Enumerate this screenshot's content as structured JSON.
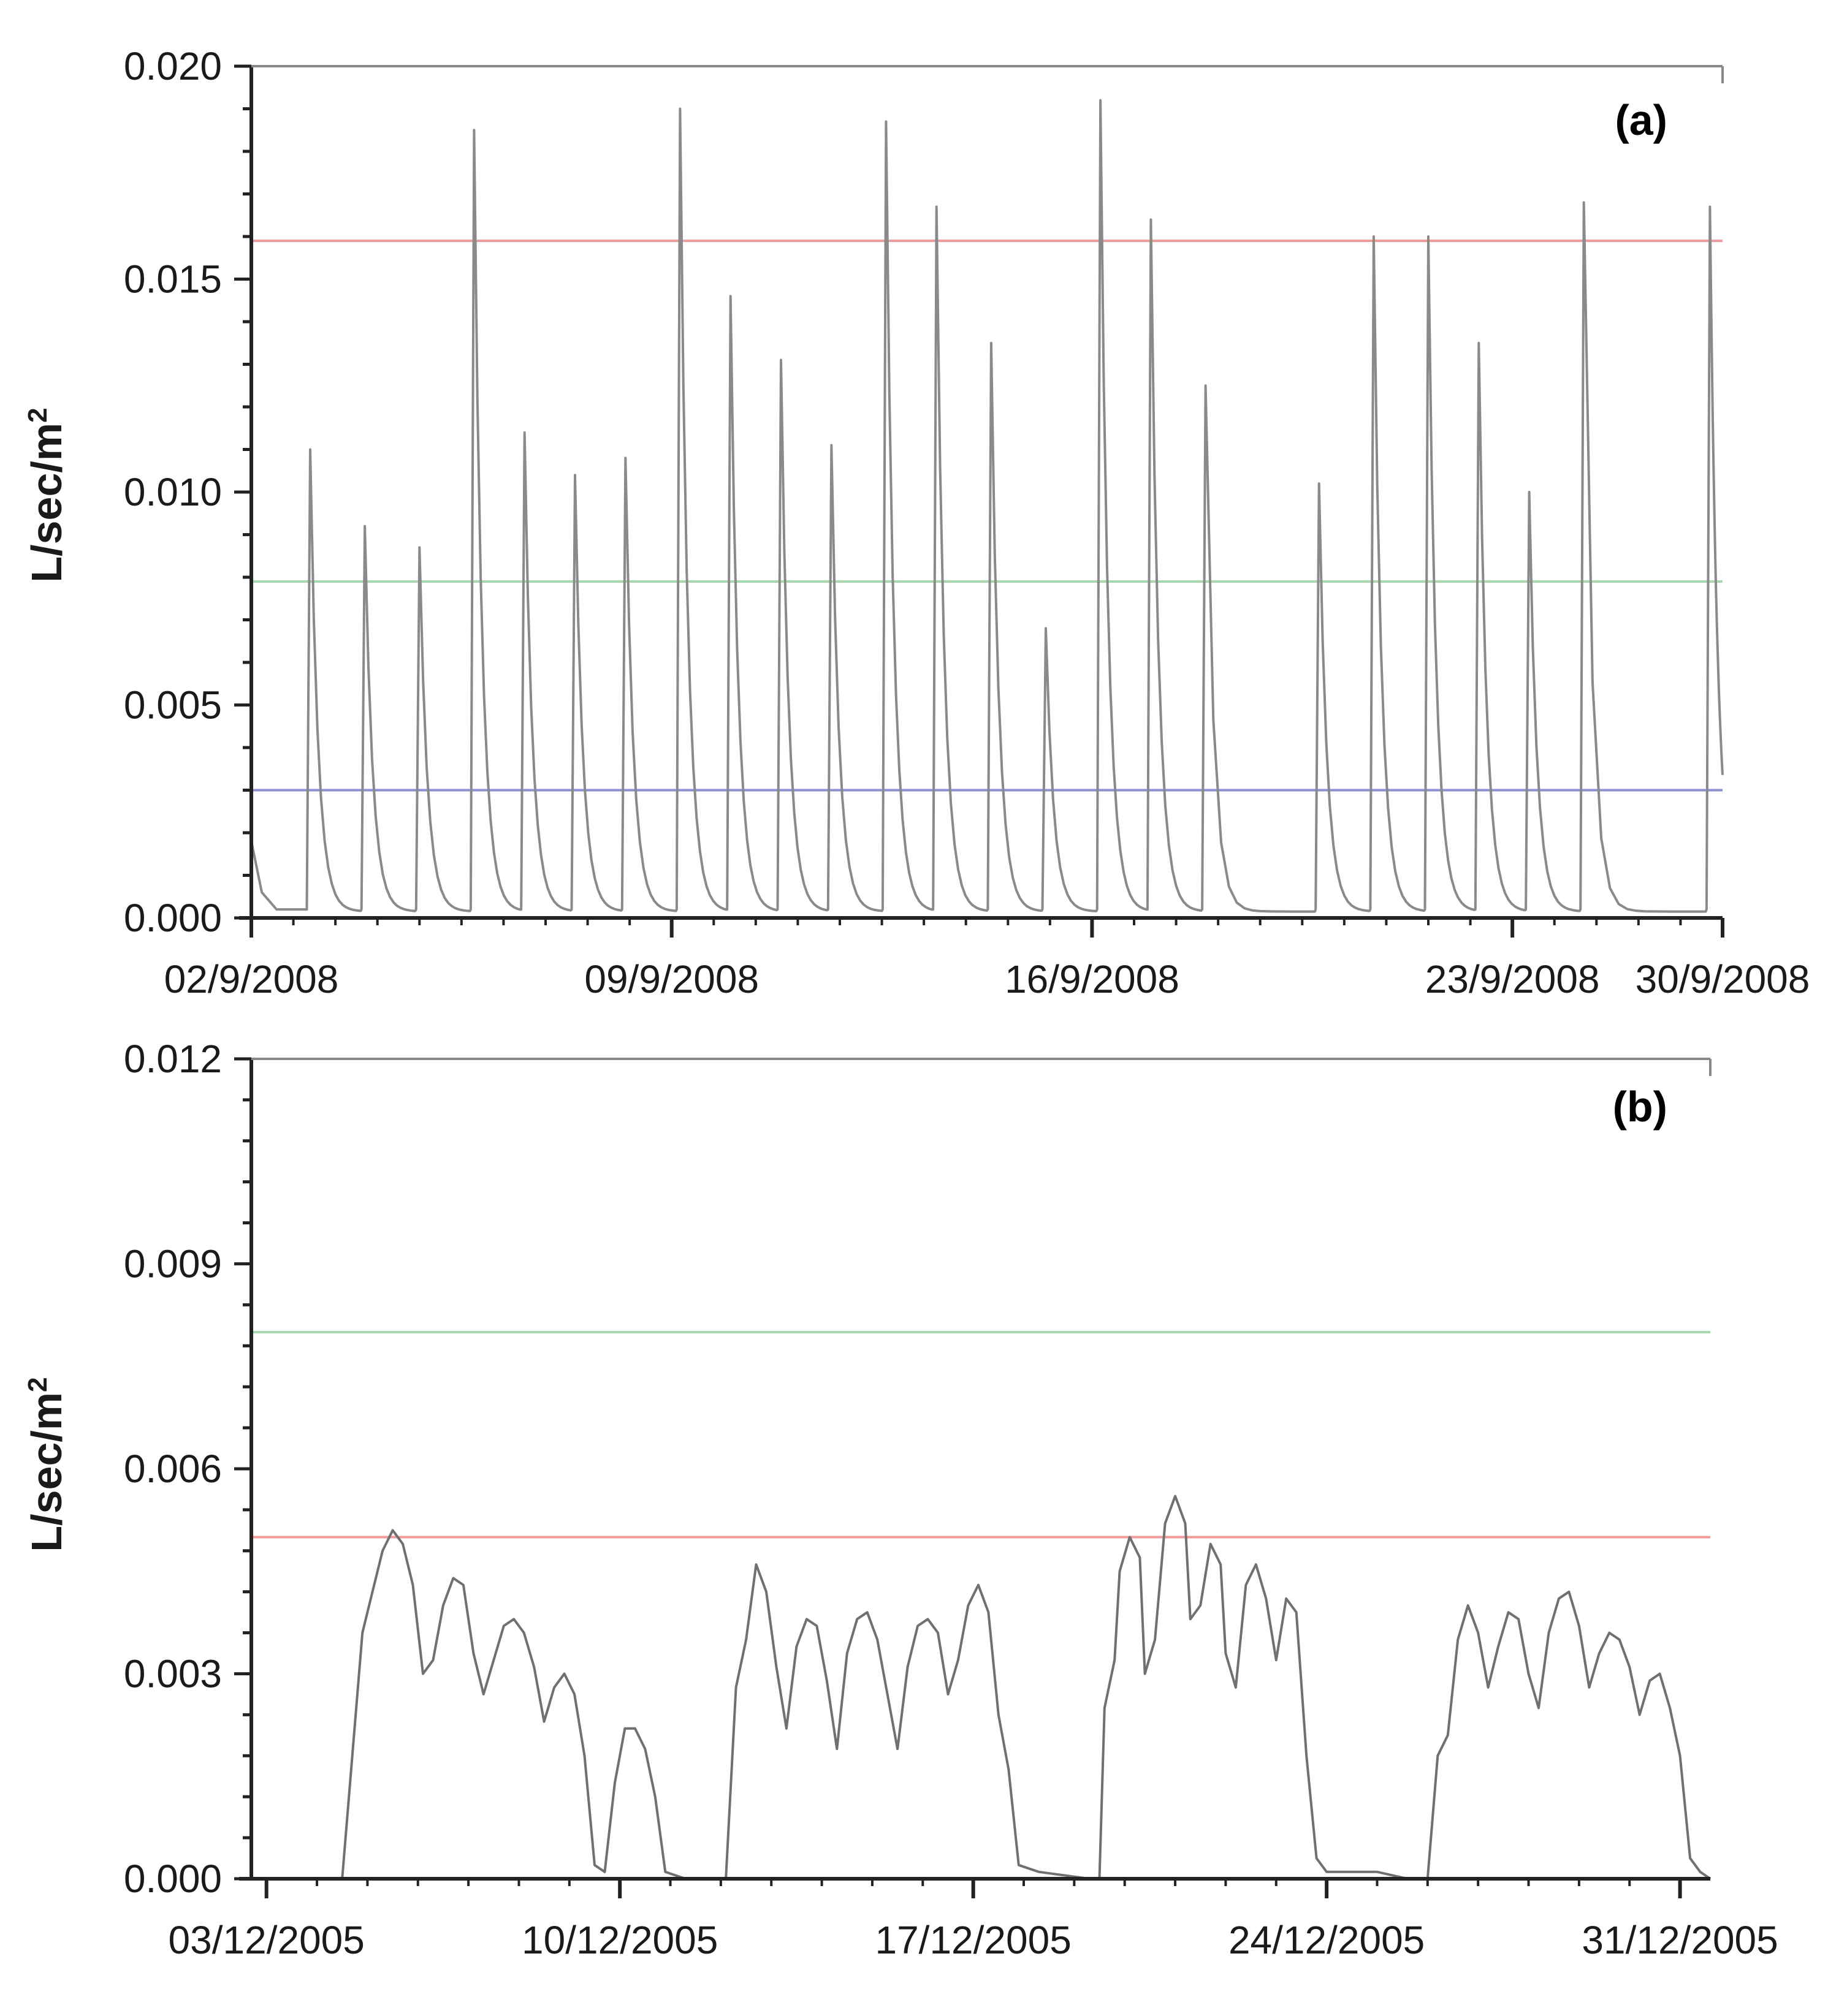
{
  "chart_data": [
    {
      "type": "line",
      "panel_label": "(a)",
      "ylabel": "L/sec/m",
      "ylabel_sup": "2",
      "ylim": [
        0,
        0.02
      ],
      "yticks": [
        "0.000",
        "0.005",
        "0.010",
        "0.015",
        "0.020"
      ],
      "ytick_values": [
        0,
        0.005,
        0.01,
        0.015,
        0.02
      ],
      "x_range_days": [
        0,
        35
      ],
      "xticks": [
        {
          "label": "02/9/2008",
          "day": 0
        },
        {
          "label": "09/9/2008",
          "day": 10
        },
        {
          "label": "16/9/2008",
          "day": 20
        },
        {
          "label": "23/9/2008",
          "day": 30
        },
        {
          "label": "30/9/2008",
          "day": 35
        }
      ],
      "thresholds": [
        {
          "name": "red-threshold",
          "value": 0.0159,
          "color": "#f09a9a"
        },
        {
          "name": "green-threshold",
          "value": 0.0079,
          "color": "#a8d8b0"
        },
        {
          "name": "blue-threshold",
          "value": 0.003,
          "color": "#8c8fd0"
        }
      ],
      "series": [
        {
          "name": "flow",
          "color": "#8a8a8a",
          "peaks": [
            {
              "day": 1.4,
              "value": 0.011
            },
            {
              "day": 2.7,
              "value": 0.0092
            },
            {
              "day": 4.0,
              "value": 0.0087
            },
            {
              "day": 5.3,
              "value": 0.0185
            },
            {
              "day": 6.5,
              "value": 0.0114
            },
            {
              "day": 7.7,
              "value": 0.0104
            },
            {
              "day": 8.9,
              "value": 0.0108
            },
            {
              "day": 10.2,
              "value": 0.019
            },
            {
              "day": 11.4,
              "value": 0.0146
            },
            {
              "day": 12.6,
              "value": 0.0131
            },
            {
              "day": 13.8,
              "value": 0.0111
            },
            {
              "day": 15.1,
              "value": 0.0187
            },
            {
              "day": 16.3,
              "value": 0.0167
            },
            {
              "day": 17.6,
              "value": 0.0135
            },
            {
              "day": 18.9,
              "value": 0.0068
            },
            {
              "day": 20.2,
              "value": 0.0192
            },
            {
              "day": 21.4,
              "value": 0.0164
            },
            {
              "day": 22.7,
              "value": 0.0125
            },
            {
              "day": 25.4,
              "value": 0.0102
            },
            {
              "day": 26.7,
              "value": 0.016
            },
            {
              "day": 28.0,
              "value": 0.016
            },
            {
              "day": 29.2,
              "value": 0.0135
            },
            {
              "day": 30.4,
              "value": 0.01
            },
            {
              "day": 31.7,
              "value": 0.0168
            },
            {
              "day": 34.7,
              "value": 0.0167
            }
          ]
        }
      ]
    },
    {
      "type": "line",
      "panel_label": "(b)",
      "ylabel": "L/sec/m",
      "ylabel_sup": "2",
      "ylim": [
        0,
        0.012
      ],
      "yticks": [
        "0.000",
        "0.003",
        "0.006",
        "0.009",
        "0.012"
      ],
      "ytick_values": [
        0,
        0.003,
        0.006,
        0.009,
        0.012
      ],
      "x_range_days": [
        -0.3,
        28.6
      ],
      "xticks": [
        {
          "label": "03/12/2005",
          "day": 0
        },
        {
          "label": "10/12/2005",
          "day": 7
        },
        {
          "label": "17/12/2005",
          "day": 14
        },
        {
          "label": "24/12/2005",
          "day": 21
        },
        {
          "label": "31/12/2005",
          "day": 28
        }
      ],
      "thresholds": [
        {
          "name": "green-threshold",
          "value": 0.008,
          "color": "#a8d8b0"
        },
        {
          "name": "red-threshold",
          "value": 0.005,
          "color": "#f09a9a"
        }
      ],
      "series": [
        {
          "name": "flow",
          "color": "#707070",
          "points": [
            [
              -0.3,
              0
            ],
            [
              1.5,
              0
            ],
            [
              1.7,
              0.0018
            ],
            [
              1.9,
              0.0036
            ],
            [
              2.1,
              0.0042
            ],
            [
              2.3,
              0.0048
            ],
            [
              2.5,
              0.0051
            ],
            [
              2.7,
              0.0049
            ],
            [
              2.9,
              0.0043
            ],
            [
              3.1,
              0.003
            ],
            [
              3.3,
              0.0032
            ],
            [
              3.5,
              0.004
            ],
            [
              3.7,
              0.0044
            ],
            [
              3.9,
              0.0043
            ],
            [
              4.1,
              0.0033
            ],
            [
              4.3,
              0.0027
            ],
            [
              4.5,
              0.0032
            ],
            [
              4.7,
              0.0037
            ],
            [
              4.9,
              0.0038
            ],
            [
              5.1,
              0.0036
            ],
            [
              5.3,
              0.0031
            ],
            [
              5.5,
              0.0023
            ],
            [
              5.7,
              0.0028
            ],
            [
              5.9,
              0.003
            ],
            [
              6.1,
              0.0027
            ],
            [
              6.3,
              0.0018
            ],
            [
              6.5,
              0.0002
            ],
            [
              6.7,
              0.0001
            ],
            [
              6.9,
              0.0014
            ],
            [
              7.1,
              0.0022
            ],
            [
              7.3,
              0.0022
            ],
            [
              7.5,
              0.0019
            ],
            [
              7.7,
              0.0012
            ],
            [
              7.9,
              0.0001
            ],
            [
              8.3,
              0
            ],
            [
              9.1,
              0
            ],
            [
              9.3,
              0.0028
            ],
            [
              9.5,
              0.0035
            ],
            [
              9.7,
              0.0046
            ],
            [
              9.9,
              0.0042
            ],
            [
              10.1,
              0.0031
            ],
            [
              10.3,
              0.0022
            ],
            [
              10.5,
              0.0034
            ],
            [
              10.7,
              0.0038
            ],
            [
              10.9,
              0.0037
            ],
            [
              11.1,
              0.0029
            ],
            [
              11.3,
              0.0019
            ],
            [
              11.5,
              0.0033
            ],
            [
              11.7,
              0.0038
            ],
            [
              11.9,
              0.0039
            ],
            [
              12.1,
              0.0035
            ],
            [
              12.3,
              0.0027
            ],
            [
              12.5,
              0.0019
            ],
            [
              12.7,
              0.0031
            ],
            [
              12.9,
              0.0037
            ],
            [
              13.1,
              0.0038
            ],
            [
              13.3,
              0.0036
            ],
            [
              13.5,
              0.0027
            ],
            [
              13.7,
              0.0032
            ],
            [
              13.9,
              0.004
            ],
            [
              14.1,
              0.0043
            ],
            [
              14.3,
              0.0039
            ],
            [
              14.5,
              0.0024
            ],
            [
              14.7,
              0.0016
            ],
            [
              14.9,
              0.0002
            ],
            [
              15.3,
              0.0001
            ],
            [
              16.3,
              0
            ],
            [
              16.5,
              0
            ],
            [
              16.6,
              0.0025
            ],
            [
              16.8,
              0.0032
            ],
            [
              16.9,
              0.0045
            ],
            [
              17.1,
              0.005
            ],
            [
              17.3,
              0.0047
            ],
            [
              17.4,
              0.003
            ],
            [
              17.6,
              0.0035
            ],
            [
              17.8,
              0.0052
            ],
            [
              18.0,
              0.0056
            ],
            [
              18.2,
              0.0052
            ],
            [
              18.3,
              0.0038
            ],
            [
              18.5,
              0.004
            ],
            [
              18.7,
              0.0049
            ],
            [
              18.9,
              0.0046
            ],
            [
              19.0,
              0.0033
            ],
            [
              19.2,
              0.0028
            ],
            [
              19.4,
              0.0043
            ],
            [
              19.6,
              0.0046
            ],
            [
              19.8,
              0.0041
            ],
            [
              20.0,
              0.0032
            ],
            [
              20.2,
              0.0041
            ],
            [
              20.4,
              0.0039
            ],
            [
              20.6,
              0.0018
            ],
            [
              20.8,
              0.0003
            ],
            [
              21.0,
              0.0001
            ],
            [
              22.0,
              0.0001
            ],
            [
              22.6,
              0
            ],
            [
              23.0,
              0
            ],
            [
              23.2,
              0.0018
            ],
            [
              23.4,
              0.0021
            ],
            [
              23.6,
              0.0035
            ],
            [
              23.8,
              0.004
            ],
            [
              24.0,
              0.0036
            ],
            [
              24.2,
              0.0028
            ],
            [
              24.4,
              0.0034
            ],
            [
              24.6,
              0.0039
            ],
            [
              24.8,
              0.0038
            ],
            [
              25.0,
              0.003
            ],
            [
              25.2,
              0.0025
            ],
            [
              25.4,
              0.0036
            ],
            [
              25.6,
              0.0041
            ],
            [
              25.8,
              0.0042
            ],
            [
              26.0,
              0.0037
            ],
            [
              26.2,
              0.0028
            ],
            [
              26.4,
              0.0033
            ],
            [
              26.6,
              0.0036
            ],
            [
              26.8,
              0.0035
            ],
            [
              27.0,
              0.0031
            ],
            [
              27.2,
              0.0024
            ],
            [
              27.4,
              0.0029
            ],
            [
              27.6,
              0.003
            ],
            [
              27.8,
              0.0025
            ],
            [
              28.0,
              0.0018
            ],
            [
              28.2,
              0.0003
            ],
            [
              28.4,
              0.0001
            ],
            [
              28.6,
              0
            ]
          ]
        }
      ]
    }
  ]
}
